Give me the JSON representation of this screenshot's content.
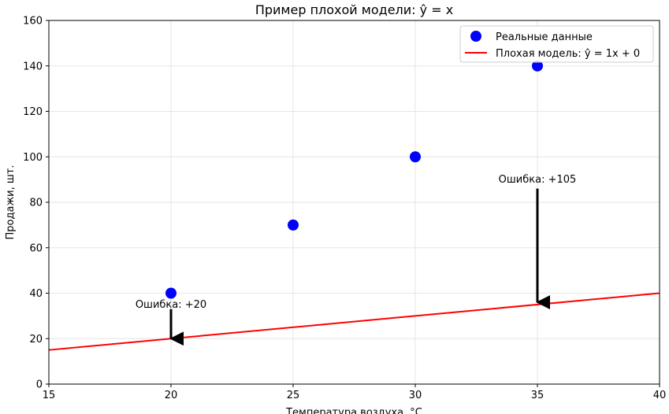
{
  "chart_data": {
    "type": "scatter",
    "title": "Пример плохой модели: ŷ = x",
    "xlabel": "Температура воздуха, °C",
    "ylabel": "Продажи, шт.",
    "xlim": [
      15,
      40
    ],
    "ylim": [
      0,
      160
    ],
    "xticks": [
      15,
      20,
      25,
      30,
      35,
      40
    ],
    "yticks": [
      0,
      20,
      40,
      60,
      80,
      100,
      120,
      140,
      160
    ],
    "grid": true,
    "legend_position": "top-right",
    "series": [
      {
        "name": "Реальные данные",
        "kind": "scatter",
        "color": "#0000ff",
        "x": [
          20,
          25,
          30,
          35
        ],
        "y": [
          40,
          70,
          100,
          140
        ]
      },
      {
        "name": "Плохая модель: ŷ = 1x + 0",
        "kind": "line",
        "color": "#ff0000",
        "x": [
          15,
          40
        ],
        "y": [
          15,
          40
        ]
      }
    ],
    "annotations": [
      {
        "text": "Ошибка: +20",
        "x": 20,
        "y_text": 35,
        "arrow_from": 33,
        "arrow_to": 20
      },
      {
        "text": "Ошибка: +105",
        "x": 35,
        "y_text": 90,
        "arrow_from": 86,
        "arrow_to": 36
      }
    ]
  }
}
